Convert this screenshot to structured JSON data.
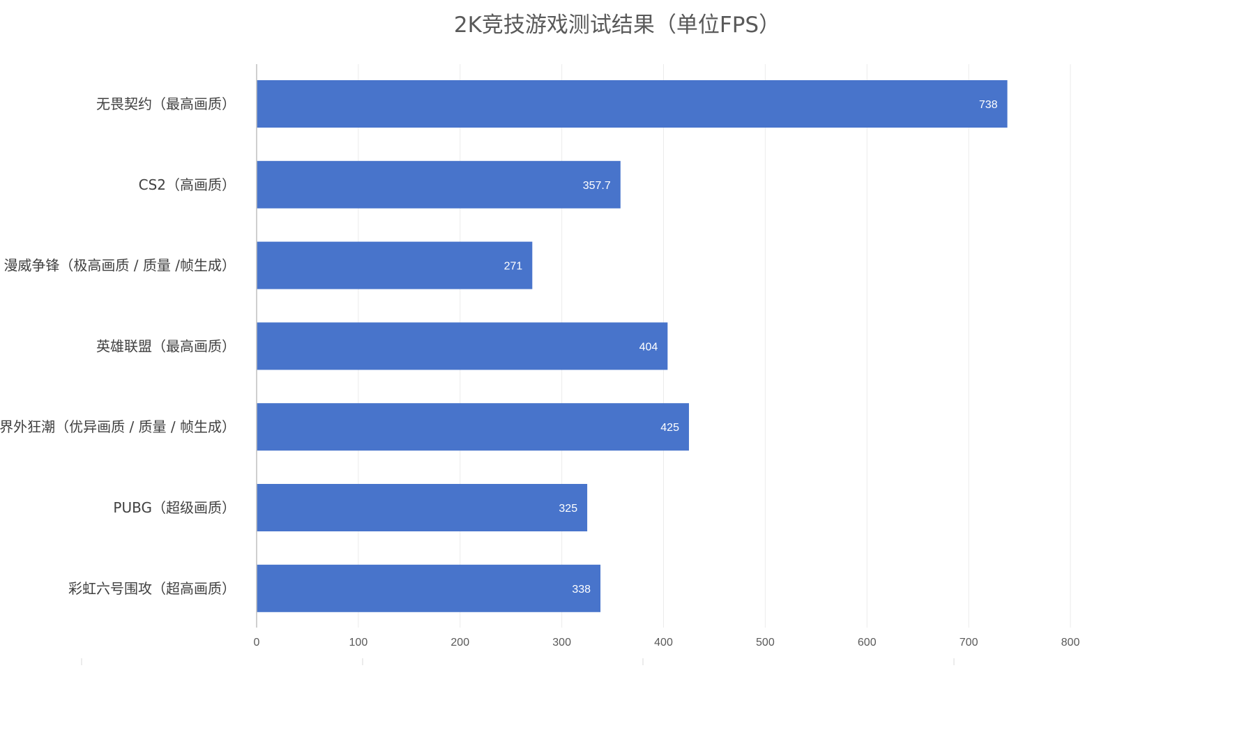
{
  "chart_data": {
    "type": "bar",
    "orientation": "horizontal",
    "title": "2K竞技游戏测试结果（单位FPS）",
    "categories": [
      "无畏契约（最高画质）",
      "CS2（高画质）",
      "漫威争锋（极高画质 / 质量 /帧生成）",
      "英雄联盟（最高画质）",
      "界外狂潮（优异画质 / 质量 / 帧生成）",
      "PUBG（超级画质）",
      "彩虹六号围攻（超高画质）"
    ],
    "values": [
      738,
      357.7,
      271,
      404,
      425,
      325,
      338
    ],
    "value_labels": [
      "738",
      "357.7",
      "271",
      "404",
      "425",
      "325",
      "338"
    ],
    "xlim": [
      0,
      800
    ],
    "ticks": [
      "0",
      "100",
      "200",
      "300",
      "400",
      "500",
      "600",
      "700",
      "800"
    ],
    "xlabel": "",
    "ylabel": "",
    "grid": true,
    "legend": "none",
    "bar_color": "#4874CB",
    "gridline_color": "#EBEBEB",
    "axis_color": "#BFBFBF"
  }
}
